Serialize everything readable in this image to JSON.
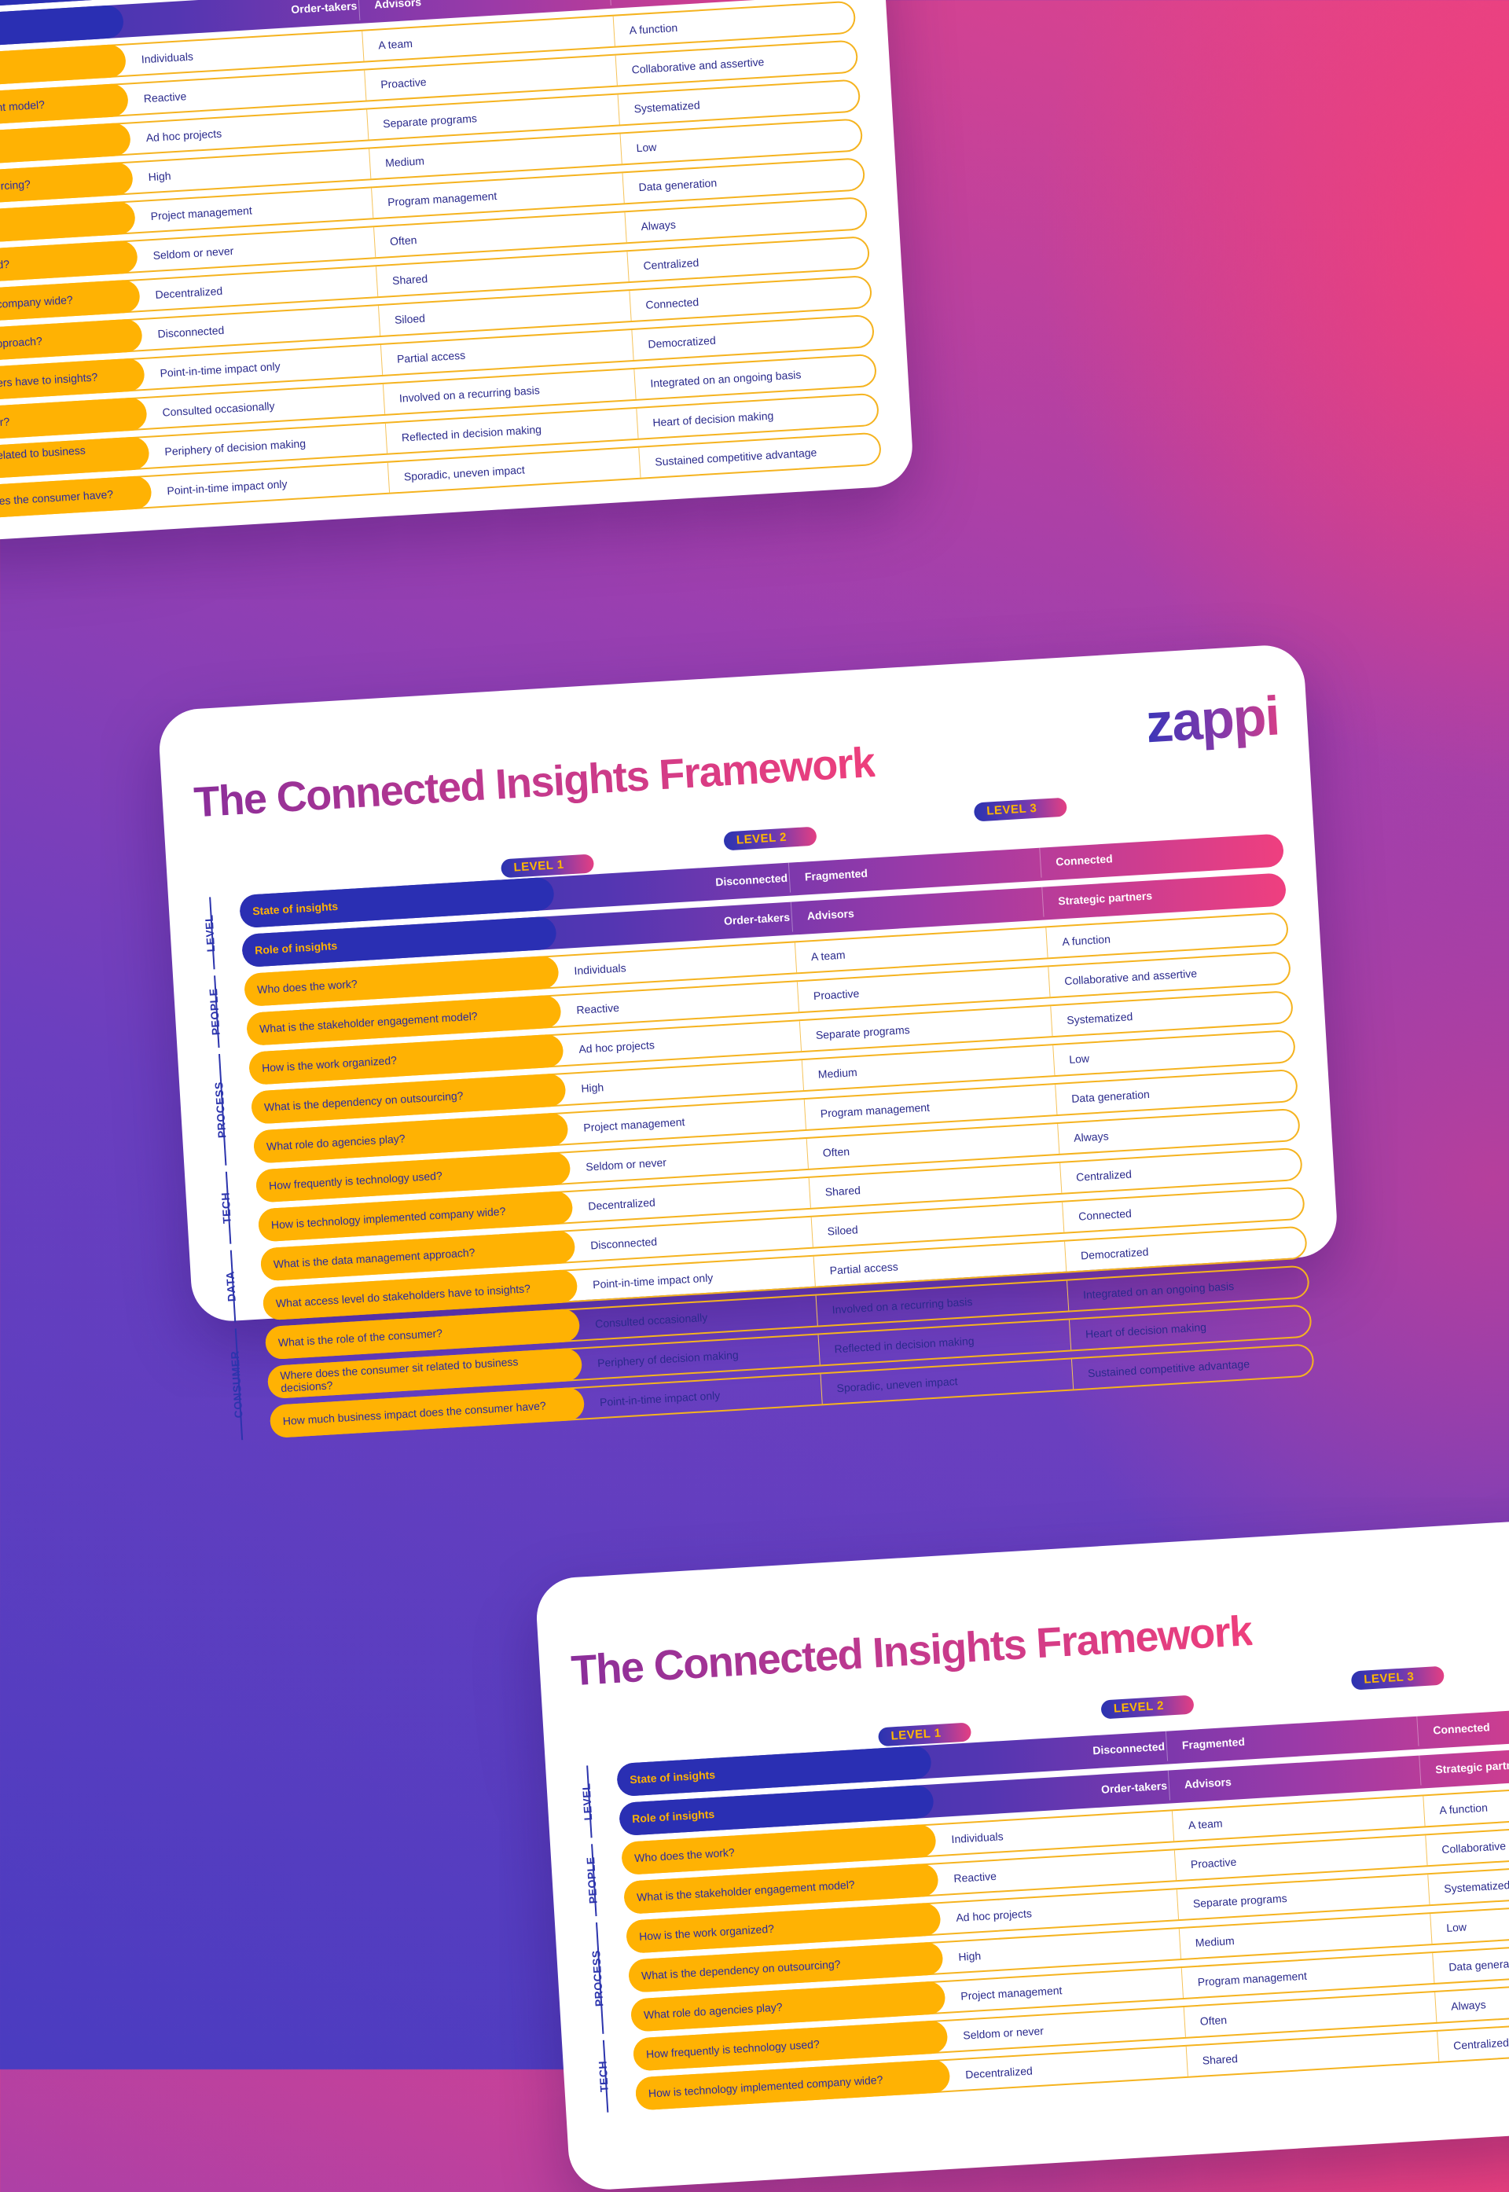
{
  "framework": {
    "title": "The Connected Insights Framework",
    "brand": "zappi",
    "levels": [
      "LEVEL 1",
      "LEVEL 2",
      "LEVEL 3"
    ],
    "header_rows": [
      {
        "label": "State of insights",
        "l1": "Disconnected",
        "l2": "Fragmented",
        "l3": "Connected"
      },
      {
        "label": "Role of insights",
        "l1": "Order-takers",
        "l2": "Advisors",
        "l3": "Strategic partners"
      }
    ],
    "rows": [
      {
        "q": "Who does the work?",
        "l1": "Individuals",
        "l2": "A team",
        "l3": "A function"
      },
      {
        "q": "What is the stakeholder engagement model?",
        "l1": "Reactive",
        "l2": "Proactive",
        "l3": "Collaborative and assertive"
      },
      {
        "q": "How is the work organized?",
        "l1": "Ad hoc projects",
        "l2": "Separate programs",
        "l3": "Systematized"
      },
      {
        "q": "What is the dependency on outsourcing?",
        "l1": "High",
        "l2": "Medium",
        "l3": "Low"
      },
      {
        "q": "What role do agencies play?",
        "l1": "Project management",
        "l2": "Program management",
        "l3": "Data generation"
      },
      {
        "q": "How frequently is technology used?",
        "l1": "Seldom or never",
        "l2": "Often",
        "l3": "Always"
      },
      {
        "q": "How is technology implemented company wide?",
        "l1": "Decentralized",
        "l2": "Shared",
        "l3": "Centralized"
      },
      {
        "q": "What is the data management approach?",
        "l1": "Disconnected",
        "l2": "Siloed",
        "l3": "Connected"
      },
      {
        "q": "What access level do stakeholders have to insights?",
        "l1": "Point-in-time impact only",
        "l2": "Partial access",
        "l3": "Democratized"
      },
      {
        "q": "What is the role of the consumer?",
        "l1": "Consulted occasionally",
        "l2": "Involved on a recurring basis",
        "l3": "Integrated on an ongoing basis"
      },
      {
        "q": "Where does the consumer sit related to business decisions?",
        "l1": "Periphery of decision making",
        "l2": "Reflected in decision making",
        "l3": "Heart of decision making"
      },
      {
        "q": "How much business impact does the consumer have?",
        "l1": "Point-in-time impact only",
        "l2": "Sporadic, uneven impact",
        "l3": "Sustained competitive advantage"
      }
    ],
    "categories": [
      "LEVEL",
      "PEOPLE",
      "PROCESS",
      "TECH",
      "DATA",
      "CONSUMER"
    ]
  }
}
